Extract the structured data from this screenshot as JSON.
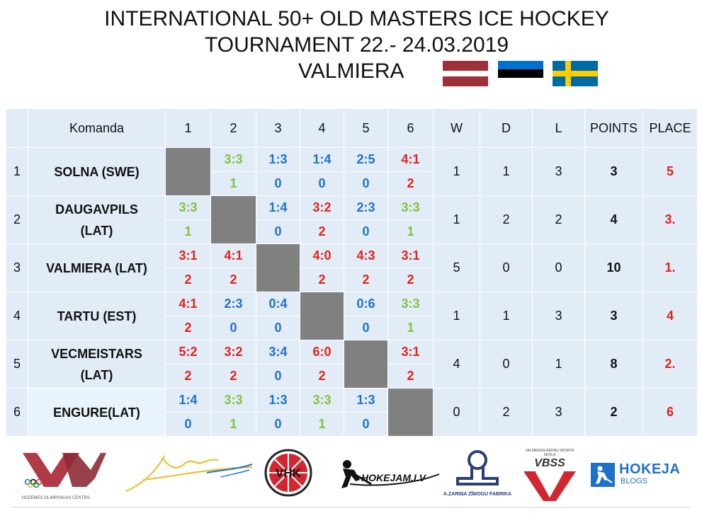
{
  "header": {
    "line1": "INTERNATIONAL 50+ OLD MASTERS ICE HOCKEY",
    "line2": "TOURNAMENT  22.- 24.03.2019",
    "line3": "VALMIERA"
  },
  "flags": [
    {
      "name": "latvia-flag-icon",
      "stripes": [
        "#9e3039",
        "#ffffff",
        "#9e3039"
      ],
      "ratio": [
        2,
        1,
        2
      ]
    },
    {
      "name": "estonia-flag-icon",
      "stripes": [
        "#0072ce",
        "#000000",
        "#ffffff"
      ],
      "ratio": [
        1,
        1,
        1
      ]
    },
    {
      "name": "sweden-flag-icon",
      "base": "#006aa7",
      "cross": "#fecc00"
    }
  ],
  "table": {
    "headers": [
      "",
      "Komanda",
      "1",
      "2",
      "3",
      "4",
      "5",
      "6",
      "W",
      "D",
      "L",
      "POINTS",
      "PLACE"
    ],
    "rows": [
      {
        "n": "1",
        "team": [
          "SOLNA (SWE)"
        ],
        "cells": [
          null,
          [
            "3:3",
            "1"
          ],
          [
            "1:3",
            "0"
          ],
          [
            "1:4",
            "0"
          ],
          [
            "2:5",
            "0"
          ],
          [
            "4:1",
            "2"
          ]
        ],
        "w": "1",
        "d": "1",
        "l": "3",
        "points": "3",
        "place": "5"
      },
      {
        "n": "2",
        "team": [
          "DAUGAVPILS",
          "(LAT)"
        ],
        "cells": [
          [
            "3:3",
            "1"
          ],
          null,
          [
            "1:4",
            "0"
          ],
          [
            "3:2",
            "2"
          ],
          [
            "2:3",
            "0"
          ],
          [
            "3:3",
            "1"
          ]
        ],
        "w": "1",
        "d": "2",
        "l": "2",
        "points": "4",
        "place": "3."
      },
      {
        "n": "3",
        "team": [
          "VALMIERA (LAT)"
        ],
        "cells": [
          [
            "3:1",
            "2"
          ],
          [
            "4:1",
            "2"
          ],
          null,
          [
            "4:0",
            "2"
          ],
          [
            "4:3",
            "2"
          ],
          [
            "3:1",
            "2"
          ]
        ],
        "w": "5",
        "d": "0",
        "l": "0",
        "points": "10",
        "place": "1."
      },
      {
        "n": "4",
        "team": [
          "TARTU (EST)"
        ],
        "cells": [
          [
            "4:1",
            "2"
          ],
          [
            "2:3",
            "0"
          ],
          [
            "0:4",
            "0"
          ],
          null,
          [
            "0:6",
            "0"
          ],
          [
            "3:3",
            "1"
          ]
        ],
        "w": "1",
        "d": "1",
        "l": "3",
        "points": "3",
        "place": "4"
      },
      {
        "n": "5",
        "team": [
          "VECMEISTARS",
          "(LAT)"
        ],
        "cells": [
          [
            "5:2",
            "2"
          ],
          [
            "3:2",
            "2"
          ],
          [
            "3:4",
            "0"
          ],
          [
            "6:0",
            "2"
          ],
          null,
          [
            "3:1",
            "2"
          ]
        ],
        "w": "4",
        "d": "0",
        "l": "1",
        "points": "8",
        "place": "2."
      },
      {
        "n": "6",
        "team": [
          "ENGURE(LAT)"
        ],
        "cells": [
          [
            "1:4",
            "0"
          ],
          [
            "3:3",
            "1"
          ],
          [
            "1:3",
            "0"
          ],
          [
            "3:3",
            "1"
          ],
          [
            "1:3",
            "0"
          ],
          null
        ],
        "w": "0",
        "d": "2",
        "l": "3",
        "points": "2",
        "place": "6"
      }
    ],
    "colors": {
      "win": "#e0231b",
      "loss": "#1e73c8",
      "draw": "#7fc241"
    }
  },
  "sponsors": [
    {
      "name": "vidzemes-olimpiskais-centrs-logo",
      "caption": "VIDZEMES OLIMPISKAIS CENTRS"
    },
    {
      "name": "valmiera-logo"
    },
    {
      "name": "vhk-logo",
      "text": "VHK"
    },
    {
      "name": "hokejam-lv-logo",
      "text": "HOKEJAM.LV"
    },
    {
      "name": "zimogu-fabrika-logo",
      "caption": "A.ZARIŅA ZĪMOGU FABRIKA"
    },
    {
      "name": "vbss-logo",
      "text": "VBSS",
      "caption": "VALMIERAS BĒRNU SPORTA SKOLA"
    },
    {
      "name": "hokeja-blogs-logo",
      "text": "HOKEJA",
      "caption": "BLOGS"
    }
  ]
}
